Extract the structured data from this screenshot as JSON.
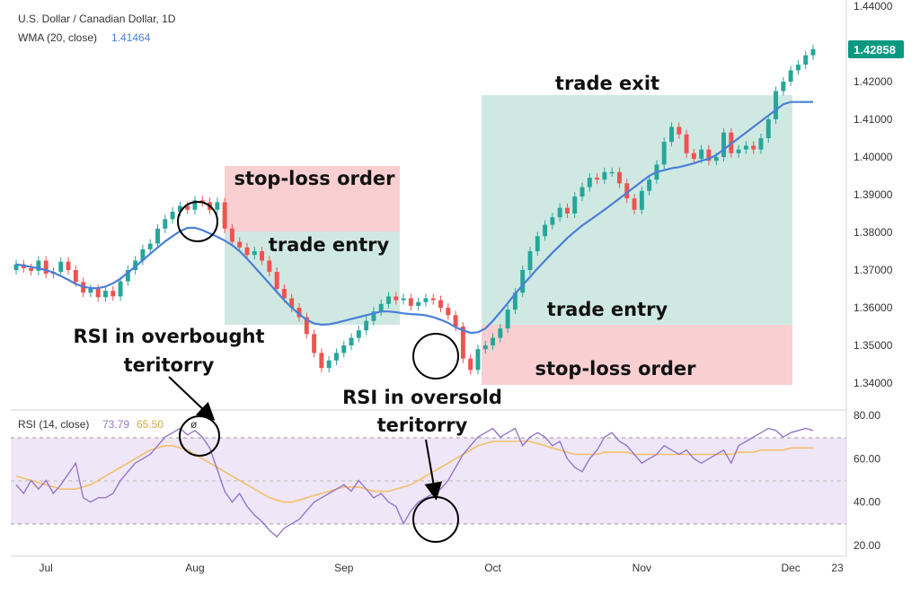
{
  "header": {
    "symbol": "U.S. Dollar / Canadian Dollar, 1D",
    "wma_label": "WMA (20, close)",
    "wma_value": "1.41464",
    "rsi_label": "RSI (14, close)",
    "rsi_value": "73.79",
    "rsi_ma_value": "65.50",
    "rsi_extra": "ø"
  },
  "price_tag": "1.42858",
  "annotations": {
    "stop_loss_1": "stop-loss order",
    "trade_entry_1": "trade entry",
    "trade_exit": "trade exit",
    "trade_entry_2": "trade entry",
    "stop_loss_2": "stop-loss order",
    "rsi_overbought": [
      "RSI in overbought",
      "teritorry"
    ],
    "rsi_oversold": [
      "RSI in oversold",
      "teritorry"
    ]
  },
  "colors": {
    "up": "#26a69a",
    "down": "#ef5350",
    "wma": "#4a7fd6",
    "rsi": "#9575cd",
    "rsi_ma": "#f3c06b",
    "profit_zone": "#cfe9e2",
    "loss_zone": "#f9cfd1",
    "rsi_band": "#efe7f7",
    "price_tag": "#089981"
  },
  "chart_data": [
    {
      "type": "candlestick",
      "title": "U.S. Dollar / Canadian Dollar, 1D",
      "y_ticks": [
        "1.44000",
        "1.42000",
        "1.41000",
        "1.40000",
        "1.39000",
        "1.38000",
        "1.37000",
        "1.36000",
        "1.35000",
        "1.34000"
      ],
      "ylim": [
        1.335,
        1.445
      ],
      "x_ticks": [
        "Jul",
        "Aug",
        "Sep",
        "Oct",
        "Nov",
        "Dec",
        "23"
      ],
      "close": [
        1.3715,
        1.3705,
        1.3698,
        1.3725,
        1.369,
        1.3695,
        1.3722,
        1.37,
        1.3668,
        1.364,
        1.365,
        1.3628,
        1.3645,
        1.363,
        1.367,
        1.37,
        1.3725,
        1.3755,
        1.377,
        1.381,
        1.3835,
        1.3855,
        1.387,
        1.386,
        1.3885,
        1.388,
        1.386,
        1.388,
        1.381,
        1.3775,
        1.376,
        1.374,
        1.375,
        1.3725,
        1.3695,
        1.365,
        1.3625,
        1.36,
        1.3575,
        1.353,
        1.348,
        1.344,
        1.346,
        1.348,
        1.35,
        1.352,
        1.354,
        1.3565,
        1.359,
        1.361,
        1.363,
        1.362,
        1.3625,
        1.3605,
        1.3615,
        1.3625,
        1.362,
        1.36,
        1.358,
        1.355,
        1.3465,
        1.3435,
        1.349,
        1.35,
        1.352,
        1.3545,
        1.3595,
        1.364,
        1.37,
        1.375,
        1.379,
        1.382,
        1.384,
        1.3865,
        1.385,
        1.3895,
        1.392,
        1.3945,
        1.394,
        1.396,
        1.396,
        1.393,
        1.389,
        1.386,
        1.391,
        1.394,
        1.398,
        1.404,
        1.408,
        1.406,
        1.401,
        1.3995,
        1.402,
        1.399,
        1.4,
        1.4065,
        1.401,
        1.402,
        1.403,
        1.402,
        1.405,
        1.41,
        1.4175,
        1.42,
        1.423,
        1.4245,
        1.427,
        1.4286
      ],
      "wma": [
        1.3715,
        1.3712,
        1.3708,
        1.3705,
        1.37,
        1.3693,
        1.3684,
        1.3674,
        1.3663,
        1.3656,
        1.3652,
        1.3652,
        1.3656,
        1.3665,
        1.3677,
        1.3693,
        1.3709,
        1.3726,
        1.3743,
        1.376,
        1.3776,
        1.379,
        1.3803,
        1.3812,
        1.3812,
        1.3806,
        1.3797,
        1.3788,
        1.3778,
        1.3766,
        1.375,
        1.373,
        1.3708,
        1.3686,
        1.3664,
        1.3642,
        1.362,
        1.36,
        1.3583,
        1.3568,
        1.3558,
        1.3555,
        1.3556,
        1.356,
        1.3565,
        1.357,
        1.3575,
        1.358,
        1.3585,
        1.359,
        1.359,
        1.3588,
        1.3585,
        1.3583,
        1.3582,
        1.358,
        1.3575,
        1.3568,
        1.356,
        1.3548,
        1.354,
        1.3533,
        1.3535,
        1.3545,
        1.3565,
        1.3588,
        1.3612,
        1.3637,
        1.366,
        1.3682,
        1.3704,
        1.3725,
        1.3746,
        1.3765,
        1.3785,
        1.3802,
        1.3818,
        1.3832,
        1.3846,
        1.386,
        1.3875,
        1.389,
        1.3905,
        1.392,
        1.3935,
        1.395,
        1.396,
        1.3965,
        1.397,
        1.3973,
        1.3978,
        1.3983,
        1.399,
        1.3995,
        1.4005,
        1.402,
        1.4035,
        1.405,
        1.4065,
        1.408,
        1.4095,
        1.411,
        1.4125,
        1.414,
        1.4146,
        1.4146,
        1.4146,
        1.4146
      ]
    },
    {
      "type": "line",
      "title": "RSI (14, close)",
      "y_ticks": [
        "80.00",
        "60.00",
        "40.00",
        "20.00"
      ],
      "ylim": [
        15,
        85
      ],
      "bands": [
        30,
        50,
        70
      ],
      "series": [
        {
          "name": "RSI",
          "values": [
            48,
            44,
            50,
            46,
            50,
            44,
            48,
            53,
            58,
            42,
            40,
            42,
            42,
            44,
            50,
            54,
            58,
            60,
            62,
            66,
            70,
            72,
            74,
            71,
            73,
            70,
            65,
            55,
            45,
            40,
            44,
            38,
            34,
            31,
            27,
            24,
            28,
            30,
            32,
            36,
            40,
            42,
            44,
            46,
            48,
            45,
            50,
            46,
            42,
            44,
            40,
            38,
            30,
            36,
            40,
            42,
            44,
            46,
            50,
            56,
            62,
            66,
            70,
            72,
            74,
            70,
            72,
            74,
            66,
            70,
            72,
            70,
            66,
            68,
            60,
            56,
            54,
            60,
            64,
            70,
            72,
            68,
            66,
            62,
            58,
            60,
            62,
            66,
            64,
            62,
            64,
            60,
            58,
            60,
            62,
            64,
            58,
            66,
            68,
            70,
            72,
            74,
            73,
            70,
            72,
            73,
            74,
            73
          ]
        },
        {
          "name": "MA",
          "values": [
            52,
            51,
            50,
            49,
            48,
            47,
            46,
            46,
            46,
            47,
            48,
            50,
            52,
            54,
            56,
            58,
            60,
            62,
            64,
            65,
            66,
            66,
            65,
            64,
            62,
            60,
            58,
            56,
            54,
            52,
            50,
            48,
            46,
            44,
            42,
            41,
            40,
            40,
            41,
            42,
            43,
            44,
            45,
            46,
            47,
            47,
            47,
            46,
            45,
            45,
            45,
            46,
            47,
            48,
            50,
            52,
            54,
            56,
            58,
            60,
            62,
            64,
            66,
            67,
            68,
            68,
            68,
            68,
            68,
            68,
            67,
            66,
            65,
            64,
            63,
            62,
            62,
            62,
            62,
            63,
            63,
            63,
            63,
            62,
            62,
            62,
            62,
            62,
            62,
            62,
            62,
            62,
            62,
            62,
            62,
            62,
            62,
            63,
            63,
            63,
            64,
            64,
            64,
            64,
            65,
            65,
            65,
            65
          ]
        }
      ]
    }
  ]
}
